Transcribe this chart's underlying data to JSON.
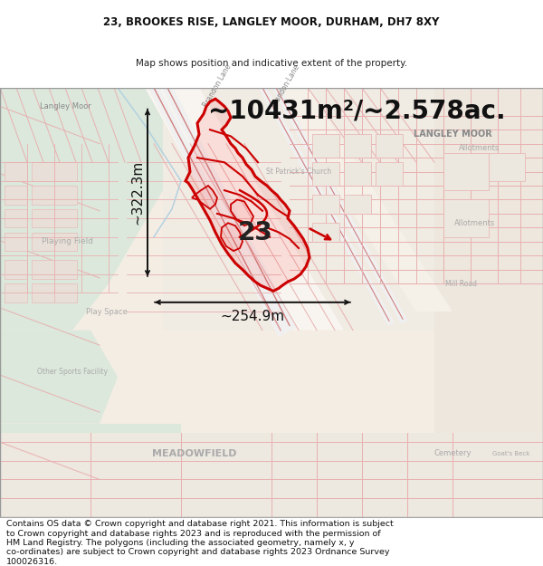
{
  "title_line1": "23, BROOKES RISE, LANGLEY MOOR, DURHAM, DH7 8XY",
  "title_line2": "Map shows position and indicative extent of the property.",
  "area_text": "~10431m²/~2.578ac.",
  "dim_vertical": "~322.3m",
  "dim_horizontal": "~254.9m",
  "label_number": "23",
  "footer_lines": [
    "Contains OS data © Crown copyright and database right 2021. This information is subject",
    "to Crown copyright and database rights 2023 and is reproduced with the permission of",
    "HM Land Registry. The polygons (including the associated geometry, namely x, y",
    "co-ordinates) are subject to Crown copyright and database rights 2023 Ordnance Survey",
    "100026316."
  ],
  "bg_color": "#ffffff",
  "title_fontsize": 8.5,
  "subtitle_fontsize": 7.5,
  "area_fontsize": 20,
  "dim_fontsize": 11,
  "label_fontsize": 20,
  "footer_fontsize": 6.8,
  "map_color_bg": "#f5f0ea",
  "map_color_green1": "#dce8dc",
  "map_color_green2": "#cfe0cf",
  "map_color_green3": "#e8f0e8",
  "road_color": "#e8b0b0",
  "road_color2": "#d08080",
  "property_color": "#cc0000",
  "dim_color": "#111111",
  "label_color": "#aaaaaa",
  "border_color": "#aaaaaa"
}
